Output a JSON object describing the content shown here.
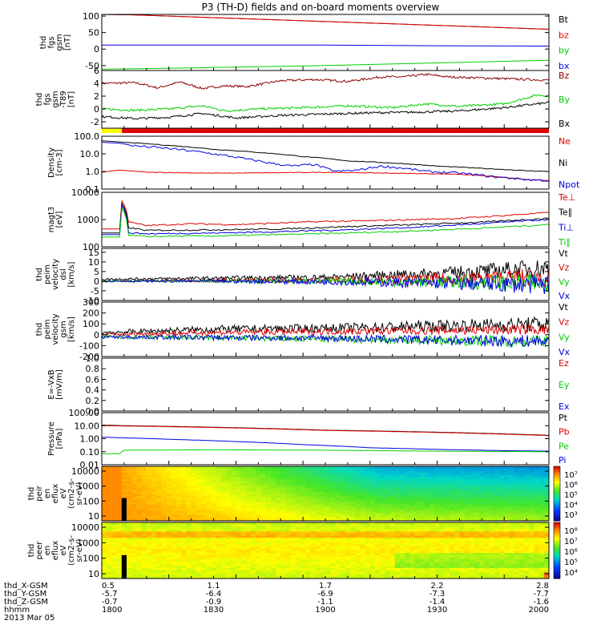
{
  "title": "P3 (TH-D) fields and on-board moments overview",
  "footer": {
    "row_labels": [
      "thd_X-GSM",
      "thd_Y-GSM",
      "thd_Z-GSM",
      "hhmm",
      "2013 Mar 05"
    ],
    "ticks": [
      {
        "x": "0.5",
        "y": "-5.7",
        "z": "-0.7",
        "t": "1800"
      },
      {
        "x": "1.1",
        "y": "-6.4",
        "z": "-0.9",
        "t": "1830"
      },
      {
        "x": "1.7",
        "y": "-6.9",
        "z": "-1.1",
        "t": "1900"
      },
      {
        "x": "2.2",
        "y": "-7.3",
        "z": "-1.4",
        "t": "1930"
      },
      {
        "x": "2.8",
        "y": "-7.7",
        "z": "-1.6",
        "t": "2000"
      }
    ]
  },
  "colors": {
    "black": "#000000",
    "red": "#e00000",
    "green": "#00d000",
    "blue": "#0000e0",
    "darkred": "#8b0000",
    "yellow": "#ffff00"
  },
  "chart_data": [
    {
      "type": "line",
      "ylabel": [
        "thd",
        "fgs",
        "gsm",
        "[nT]"
      ],
      "yticks": [
        "100",
        "50",
        "0",
        "-50"
      ],
      "ylim": [
        -65,
        105
      ],
      "legend": [
        {
          "name": "Bt",
          "color": "black"
        },
        {
          "name": "bz",
          "color": "red"
        },
        {
          "name": "by",
          "color": "green"
        },
        {
          "name": "bx",
          "color": "blue"
        }
      ],
      "series": [
        {
          "name": "Bt",
          "color": "black",
          "x": [
            1800,
            1812,
            2000
          ],
          "values": [
            105,
            104,
            60
          ]
        },
        {
          "name": "bz",
          "color": "red",
          "x": [
            1800,
            1812,
            2000
          ],
          "values": [
            105,
            104,
            60
          ]
        },
        {
          "name": "by",
          "color": "green",
          "x": [
            1800,
            1850,
            1900,
            1950,
            2000
          ],
          "values": [
            -61,
            -56,
            -50,
            -42,
            -34
          ]
        },
        {
          "name": "bx",
          "color": "blue",
          "x": [
            1800,
            1900,
            1950,
            2000
          ],
          "values": [
            12,
            12,
            10,
            9
          ]
        }
      ]
    },
    {
      "type": "line",
      "ylabel": [
        "thd",
        "fgs",
        "gsm",
        "-T89",
        "[nT]"
      ],
      "yticks": [
        "6",
        "4",
        "2",
        "0",
        "-2"
      ],
      "ylim": [
        -3,
        6
      ],
      "legend": [
        {
          "name": "Bz",
          "color": "darkred"
        },
        {
          "name": "By",
          "color": "green"
        },
        {
          "name": "Bx",
          "color": "black"
        }
      ],
      "series": [
        {
          "name": "Bz",
          "color": "darkred",
          "x": [
            1800,
            1815,
            1825,
            1835,
            1845,
            1855,
            1865,
            1880,
            1895,
            1910,
            1925,
            1935,
            1945,
            1955,
            2000
          ],
          "values": [
            4,
            4.1,
            3.3,
            4.2,
            3.2,
            3.6,
            3.5,
            4.4,
            4.6,
            4.3,
            5,
            5,
            5.4,
            5,
            4.5
          ]
        },
        {
          "name": "By",
          "color": "green",
          "x": [
            1800,
            1815,
            1830,
            1845,
            1855,
            1870,
            1890,
            1910,
            1930,
            1945,
            1960,
            1980,
            1995,
            2000
          ],
          "values": [
            0,
            -0.2,
            0,
            0.5,
            -0.3,
            0,
            0.2,
            0.5,
            0.2,
            0.8,
            0.4,
            0.8,
            2.2,
            2
          ]
        },
        {
          "name": "Bx",
          "color": "black",
          "x": [
            1800,
            1815,
            1830,
            1845,
            1860,
            1880,
            1900,
            1920,
            1940,
            1960,
            1980,
            2000
          ],
          "values": [
            -1.2,
            -1.5,
            -1.3,
            -0.7,
            -1.4,
            -1,
            -0.8,
            -0.6,
            -0.5,
            -0.3,
            0.2,
            1
          ]
        }
      ],
      "bar": {
        "segments": [
          {
            "from": 1800,
            "to": 1809,
            "color": "yellow"
          },
          {
            "from": 1809,
            "to": 2000,
            "color": "red"
          }
        ]
      }
    },
    {
      "type": "line",
      "log": true,
      "ylabel": [
        "Density",
        "[cm-3]"
      ],
      "yticks": [
        "100.0",
        "10.0",
        "1.0",
        "0.1"
      ],
      "ylim": [
        0.1,
        100
      ],
      "legend": [
        {
          "name": "Ne",
          "color": "red"
        },
        {
          "name": "Ni",
          "color": "black"
        },
        {
          "name": "Npot",
          "color": "blue"
        }
      ],
      "series": [
        {
          "name": "Ne",
          "color": "red",
          "x": [
            1800,
            1808,
            1820,
            1850,
            1880,
            1900,
            1930,
            1960,
            1980,
            1990,
            2000
          ],
          "values": [
            0.9,
            1.2,
            0.9,
            0.8,
            0.85,
            0.9,
            0.8,
            0.7,
            0.45,
            0.35,
            0.3
          ]
        },
        {
          "name": "Ni",
          "color": "black",
          "x": [
            1800,
            1810,
            1830,
            1850,
            1870,
            1890,
            1910,
            1930,
            1950,
            1970,
            1990,
            2000
          ],
          "values": [
            55,
            45,
            30,
            18,
            12,
            7,
            4,
            3,
            2,
            1.5,
            1.1,
            1
          ]
        },
        {
          "name": "Npot",
          "color": "blue",
          "x": [
            1800,
            1808,
            1815,
            1830,
            1845,
            1855,
            1865,
            1875,
            1885,
            1895,
            1900,
            1905,
            1915,
            1925,
            1935,
            1945,
            1960,
            1975,
            1990,
            2000
          ],
          "values": [
            45,
            40,
            28,
            20,
            12,
            8,
            5,
            3,
            2,
            2.5,
            1.5,
            1,
            1.2,
            2,
            1.5,
            1,
            0.8,
            0.5,
            0.35,
            0.3
          ]
        }
      ]
    },
    {
      "type": "line",
      "log": true,
      "ylabel": [
        "magt3",
        "[eV]"
      ],
      "yticks": [
        "10000",
        "1000",
        "100"
      ],
      "ylim": [
        100,
        10000
      ],
      "legend": [
        {
          "name": "Te⊥",
          "color": "red"
        },
        {
          "name": "Te∥",
          "color": "black"
        },
        {
          "name": "Ti⊥",
          "color": "blue"
        },
        {
          "name": "Ti∥",
          "color": "green"
        }
      ],
      "series": [
        {
          "name": "Te⊥",
          "color": "red",
          "x": [
            1800,
            1808,
            1808.5,
            1812,
            1820,
            1840,
            1860,
            1880,
            1900,
            1920,
            1940,
            1960,
            1980,
            2000
          ],
          "values": [
            450,
            450,
            5500,
            800,
            600,
            700,
            650,
            750,
            850,
            900,
            1000,
            1100,
            1400,
            1800
          ]
        },
        {
          "name": "Te∥",
          "color": "black",
          "x": [
            1800,
            1808,
            1808.5,
            1812,
            1820,
            1850,
            1880,
            1910,
            1940,
            1970,
            2000
          ],
          "values": [
            320,
            320,
            4500,
            500,
            400,
            420,
            450,
            550,
            650,
            800,
            1100
          ]
        },
        {
          "name": "Ti⊥",
          "color": "blue",
          "x": [
            1800,
            1808,
            1808.5,
            1812,
            1820,
            1850,
            1880,
            1910,
            1940,
            1970,
            2000
          ],
          "values": [
            280,
            280,
            3800,
            330,
            300,
            320,
            360,
            420,
            520,
            700,
            1000
          ]
        },
        {
          "name": "Ti∥",
          "color": "green",
          "x": [
            1800,
            1808,
            1808.5,
            1812,
            1820,
            1850,
            1880,
            1910,
            1940,
            1970,
            2000
          ],
          "values": [
            230,
            230,
            3000,
            260,
            240,
            250,
            280,
            320,
            380,
            480,
            650
          ]
        }
      ]
    },
    {
      "type": "line",
      "ylabel": [
        "thd",
        "peim",
        "velocity",
        "dsl",
        "[km/s]"
      ],
      "yticks": [
        "15",
        "10",
        "5",
        "0",
        "-5",
        "-10"
      ],
      "ylim": [
        -10,
        17
      ],
      "legend": [
        {
          "name": "Vt",
          "color": "black"
        },
        {
          "name": "Vz",
          "color": "red"
        },
        {
          "name": "Vy",
          "color": "green"
        },
        {
          "name": "Vx",
          "color": "blue"
        }
      ],
      "noise": true,
      "series": [
        {
          "name": "Vt",
          "color": "black",
          "x": [
            1800,
            1850,
            1900,
            1950,
            2000
          ],
          "values": [
            1,
            1.5,
            2,
            4,
            7
          ],
          "amp": [
            0.5,
            1,
            1.5,
            3,
            5
          ]
        },
        {
          "name": "Vz",
          "color": "red",
          "x": [
            1800,
            1850,
            1900,
            1950,
            2000
          ],
          "values": [
            0,
            0.3,
            0.5,
            1,
            2
          ],
          "amp": [
            0.4,
            0.8,
            1.5,
            3,
            5
          ]
        },
        {
          "name": "Vy",
          "color": "green",
          "x": [
            1800,
            1850,
            1900,
            1950,
            2000
          ],
          "values": [
            0,
            0,
            0,
            -0.5,
            -1
          ],
          "amp": [
            0.4,
            0.8,
            1.5,
            3,
            5
          ]
        },
        {
          "name": "Vx",
          "color": "blue",
          "x": [
            1800,
            1850,
            1900,
            1950,
            2000
          ],
          "values": [
            0,
            0,
            -0.3,
            -1,
            -2
          ],
          "amp": [
            0.4,
            0.8,
            1.5,
            3,
            5
          ]
        }
      ]
    },
    {
      "type": "line",
      "ylabel": [
        "thd",
        "peim",
        "velocity",
        "gsm",
        "[km/s]"
      ],
      "yticks": [
        "300",
        "200",
        "100",
        "0",
        "-100",
        "-200"
      ],
      "ylim": [
        -200,
        300
      ],
      "legend": [
        {
          "name": "Vt",
          "color": "black"
        },
        {
          "name": "Vz",
          "color": "red"
        },
        {
          "name": "Vy",
          "color": "green"
        },
        {
          "name": "Vx",
          "color": "blue"
        }
      ],
      "noise": true,
      "series": [
        {
          "name": "Vt",
          "color": "black",
          "x": [
            1800,
            1850,
            1900,
            1950,
            2000
          ],
          "values": [
            20,
            50,
            60,
            80,
            100
          ],
          "amp": [
            20,
            35,
            40,
            55,
            70
          ]
        },
        {
          "name": "Vz",
          "color": "red",
          "x": [
            1800,
            1850,
            1900,
            1950,
            2000
          ],
          "values": [
            0,
            20,
            30,
            40,
            50
          ],
          "amp": [
            15,
            25,
            30,
            40,
            50
          ]
        },
        {
          "name": "Vy",
          "color": "green",
          "x": [
            1800,
            1850,
            1900,
            1950,
            2000
          ],
          "values": [
            -20,
            -30,
            -40,
            -50,
            -60
          ],
          "amp": [
            15,
            25,
            30,
            45,
            55
          ]
        },
        {
          "name": "Vx",
          "color": "blue",
          "x": [
            1800,
            1850,
            1900,
            1950,
            2000
          ],
          "values": [
            -20,
            -25,
            -30,
            -50,
            -60
          ],
          "amp": [
            15,
            25,
            30,
            45,
            60
          ]
        }
      ]
    },
    {
      "type": "line",
      "ylabel": [
        "E=-VxB",
        "[mV/m]"
      ],
      "yticks": [
        "1.0",
        "0.8",
        "0.6",
        "0.4",
        "0.2",
        "0.0"
      ],
      "ylim": [
        0,
        1
      ],
      "legend": [
        {
          "name": "Ez",
          "color": "red"
        },
        {
          "name": "Ey",
          "color": "green"
        },
        {
          "name": "Ex",
          "color": "blue"
        }
      ],
      "series": []
    },
    {
      "type": "line",
      "log": true,
      "ylabel": [
        "Pressure",
        "[nPa]"
      ],
      "yticks": [
        "100.00",
        "10.00",
        "1.00",
        "0.10",
        "0.01"
      ],
      "ylim": [
        0.01,
        100
      ],
      "legend": [
        {
          "name": "Pt",
          "color": "black"
        },
        {
          "name": "Pb",
          "color": "red"
        },
        {
          "name": "Pe",
          "color": "green"
        },
        {
          "name": "Pi",
          "color": "blue"
        }
      ],
      "series": [
        {
          "name": "Pt",
          "color": "black",
          "x": [
            1800,
            1810,
            1900,
            2000
          ],
          "values": [
            11,
            10,
            4.5,
            1.8
          ]
        },
        {
          "name": "Pb",
          "color": "red",
          "x": [
            1800,
            1810,
            1900,
            2000
          ],
          "values": [
            10,
            9.5,
            4.3,
            1.7
          ]
        },
        {
          "name": "Pi",
          "color": "blue",
          "x": [
            1800,
            1830,
            1860,
            1890,
            1920,
            1950,
            1980,
            2000
          ],
          "values": [
            1.3,
            0.9,
            0.6,
            0.35,
            0.2,
            0.15,
            0.12,
            0.11
          ]
        },
        {
          "name": "Pe",
          "color": "green",
          "x": [
            1800,
            1808,
            1810,
            1850,
            1900,
            1950,
            2000
          ],
          "values": [
            0.07,
            0.07,
            0.13,
            0.14,
            0.13,
            0.11,
            0.1
          ]
        }
      ]
    },
    {
      "type": "heatmap",
      "ylabel": [
        "thd",
        "peir",
        "en",
        "eflux",
        "eV",
        "(cm2-s-",
        "sr-eV)"
      ],
      "yticks": [
        "10000",
        "1000",
        "100",
        "10"
      ],
      "cbar_ticks": [
        "10⁷",
        "10⁶",
        "10⁵",
        "10⁴",
        "10³"
      ],
      "cbar_range": [
        2.5,
        7.5
      ],
      "gap": [
        1808.5,
        1812
      ],
      "gap_bins": [
        0,
        0.42
      ]
    },
    {
      "type": "heatmap",
      "ylabel": [
        "thd",
        "peer",
        "en",
        "eflux",
        "eV",
        "(cm2-s-",
        "sr-eV)"
      ],
      "yticks": [
        "10000",
        "1000",
        "100",
        "10"
      ],
      "cbar_ticks": [
        "10⁸",
        "10⁷",
        "10⁶",
        "10⁵",
        "10⁴"
      ],
      "cbar_range": [
        3.5,
        8.2
      ],
      "gap": [
        1808.5,
        1812
      ],
      "gap_bins": [
        0,
        0.42
      ]
    }
  ]
}
